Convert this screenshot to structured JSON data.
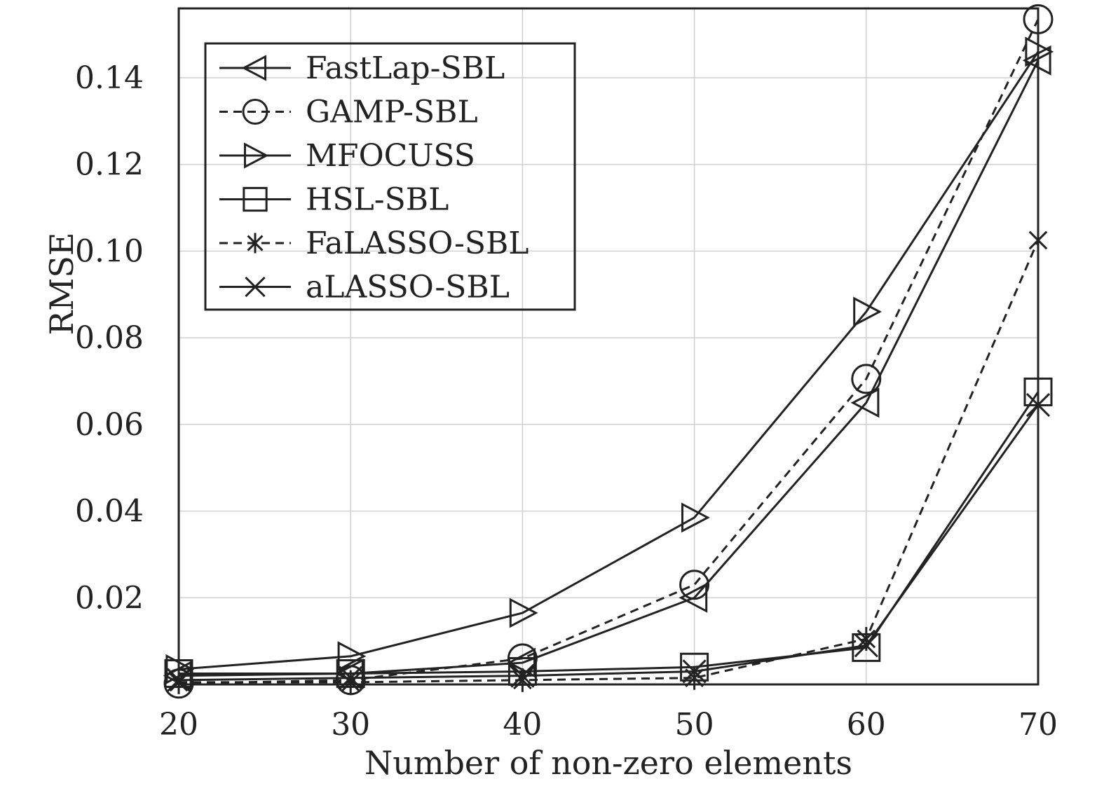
{
  "chart_data": {
    "type": "line",
    "title": "",
    "xlabel": "Number of non-zero elements",
    "ylabel": "RMSE",
    "x": [
      20,
      30,
      40,
      50,
      60,
      70
    ],
    "xlim": [
      20,
      70
    ],
    "ylim": [
      0,
      0.156
    ],
    "xticks": [
      "20",
      "30",
      "40",
      "50",
      "60",
      "70"
    ],
    "yticks": [
      {
        "value": 0.02,
        "label": "0.02"
      },
      {
        "value": 0.04,
        "label": "0.04"
      },
      {
        "value": 0.06,
        "label": "0.06"
      },
      {
        "value": 0.08,
        "label": "0.08"
      },
      {
        "value": 0.1,
        "label": "0.10"
      },
      {
        "value": 0.12,
        "label": "0.12"
      },
      {
        "value": 0.14,
        "label": "0.14"
      }
    ],
    "grid": true,
    "legend_position": "top-left",
    "series": [
      {
        "name": "FastLap-SBL",
        "marker": "triangle-left",
        "dash": "solid",
        "values": [
          0.002,
          0.0025,
          0.005,
          0.02,
          0.065,
          0.144
        ]
      },
      {
        "name": "GAMP-SBL",
        "marker": "circle",
        "dash": "dashed",
        "values": [
          0.0002,
          0.001,
          0.006,
          0.023,
          0.0705,
          0.1535
        ]
      },
      {
        "name": "MFOCUSS",
        "marker": "triangle-right",
        "dash": "solid",
        "values": [
          0.0035,
          0.0065,
          0.0165,
          0.0385,
          0.086,
          0.146
        ]
      },
      {
        "name": "HSL-SBL",
        "marker": "square",
        "dash": "solid",
        "values": [
          0.0025,
          0.0025,
          0.003,
          0.004,
          0.0085,
          0.0675
        ]
      },
      {
        "name": "FaLASSO-SBL",
        "marker": "asterisk",
        "dash": "dashed",
        "values": [
          0.0005,
          0.0005,
          0.001,
          0.0015,
          0.0105,
          0.1025
        ]
      },
      {
        "name": "aLASSO-SBL",
        "marker": "x",
        "dash": "solid",
        "values": [
          0.001,
          0.0015,
          0.002,
          0.003,
          0.009,
          0.0645
        ]
      }
    ]
  }
}
